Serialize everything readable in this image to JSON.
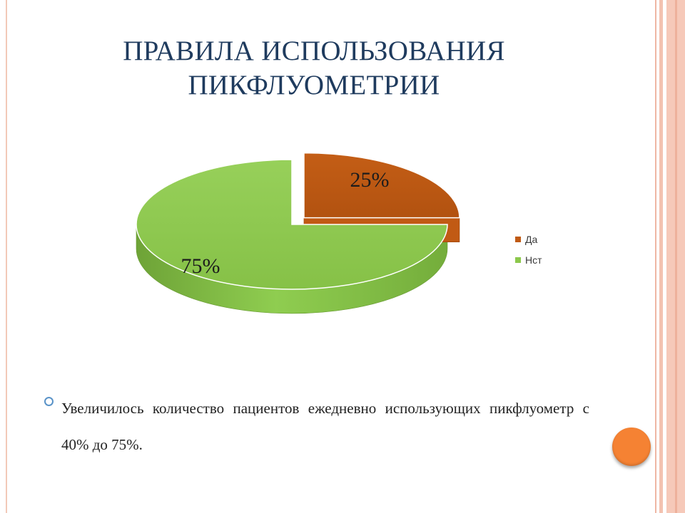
{
  "slide": {
    "title_line1": "ПРАВИЛА ИСПОЛЬЗОВАНИЯ",
    "title_line2": "ПИКФЛУОМЕТРИИ",
    "bullet_text": "Увеличилось количество пациентов ежедневно использующих пикфлуометр с 40% до 75%."
  },
  "chart_data": {
    "type": "pie",
    "style": "3d-exploded",
    "categories": [
      "Да",
      "Нст"
    ],
    "values": [
      25,
      75
    ],
    "data_labels": [
      "25%",
      "75%"
    ],
    "colors": [
      "#c05a14",
      "#8cc84c"
    ],
    "legend_position": "right"
  }
}
